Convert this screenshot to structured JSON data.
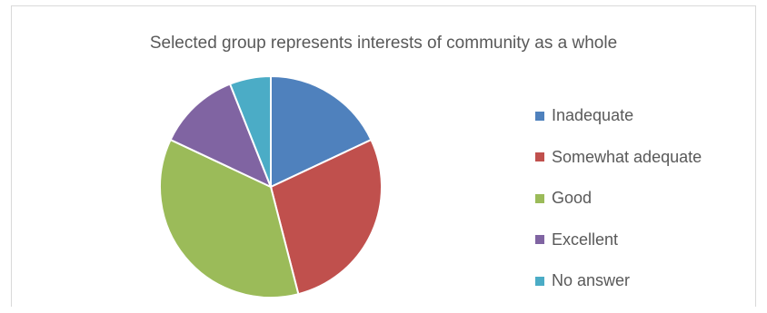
{
  "chart_data": {
    "type": "pie",
    "title": "Selected group represents interests of community as a whole",
    "categories": [
      "Inadequate",
      "Somewhat adequate",
      "Good",
      "Excellent",
      "No answer"
    ],
    "values": [
      18,
      28,
      36,
      12,
      6
    ],
    "colors": [
      "#4f81bd",
      "#c0504d",
      "#9bbb59",
      "#8064a2",
      "#4bacc6"
    ],
    "legend_position": "right"
  }
}
